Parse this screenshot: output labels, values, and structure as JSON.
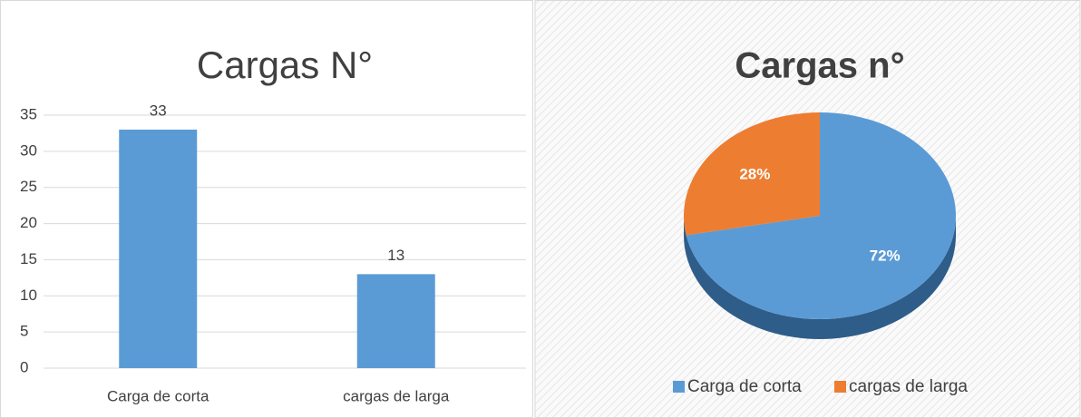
{
  "chart_data": [
    {
      "type": "bar",
      "title": "Cargas N°",
      "categories": [
        "Carga de corta",
        "cargas de larga"
      ],
      "values": [
        33,
        13
      ],
      "color": "#5b9bd5",
      "ylim": [
        0,
        35
      ],
      "yticks": [
        0,
        5,
        10,
        15,
        20,
        25,
        30,
        35
      ],
      "grid": true
    },
    {
      "type": "pie",
      "title": "Cargas n°",
      "categories": [
        "Carga de corta",
        "cargas de larga"
      ],
      "values": [
        72,
        28
      ],
      "value_labels": [
        "72%",
        "28%"
      ],
      "colors": [
        "#5b9bd5",
        "#ed7d31"
      ],
      "legend": "bottom"
    }
  ]
}
